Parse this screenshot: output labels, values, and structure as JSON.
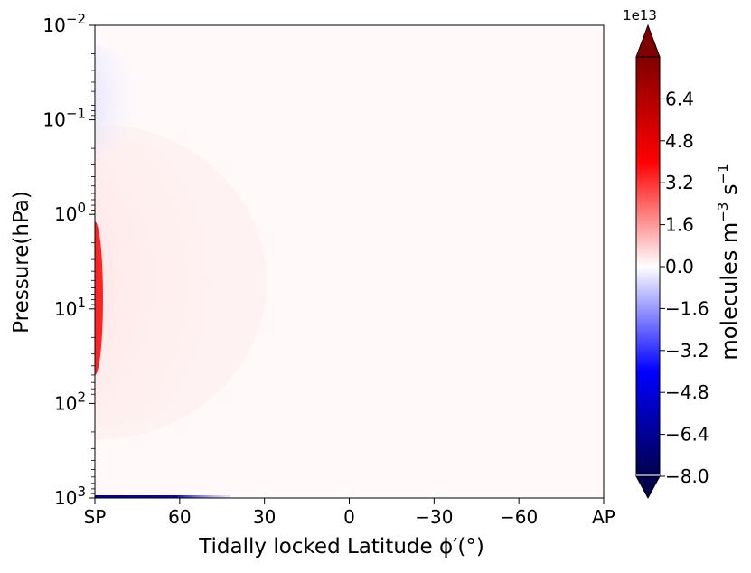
{
  "chart_data": {
    "type": "heatmap",
    "title": "",
    "xlabel": "Tidally locked Latitude ϕ′(°)",
    "ylabel": "Pressure(hPa)",
    "x_ticks": [
      "SP",
      "60",
      "30",
      "0",
      "−30",
      "−60",
      "AP"
    ],
    "x_values": [
      90,
      60,
      30,
      0,
      -30,
      -60,
      -90
    ],
    "xlim": [
      90,
      -90
    ],
    "y_scale": "log",
    "ylim": [
      1000,
      0.01
    ],
    "y_ticks": [
      {
        "base": "10",
        "exp": "−2",
        "value": 0.01
      },
      {
        "base": "10",
        "exp": "−1",
        "value": 0.1
      },
      {
        "base": "10",
        "exp": "0",
        "value": 1
      },
      {
        "base": "10",
        "exp": "1",
        "value": 10
      },
      {
        "base": "10",
        "exp": "2",
        "value": 100
      },
      {
        "base": "10",
        "exp": "3",
        "value": 1000
      }
    ],
    "colorbar": {
      "label_text": "molecules m",
      "label_exp1": "−3",
      "label_mid": " s",
      "label_exp2": "−1",
      "scale_note": "1e13",
      "range": [
        -8.0,
        8.0
      ],
      "extend": "both",
      "cmap": "seismic",
      "ticks": [
        "6.4",
        "4.8",
        "3.2",
        "1.6",
        "0.0",
        "−1.6",
        "−3.2",
        "−4.8",
        "−6.4",
        "−8.0"
      ],
      "tick_values": [
        6.4,
        4.8,
        3.2,
        1.6,
        0.0,
        -1.6,
        -3.2,
        -4.8,
        -6.4,
        -8.0
      ]
    },
    "features": [
      {
        "sign": "positive",
        "lat_range": [
          90,
          30
        ],
        "p_range": [
          0.2,
          200
        ],
        "peak_lat": 90,
        "peak_p": 10,
        "peak_value": 4.5
      },
      {
        "sign": "negative",
        "lat_range": [
          90,
          70
        ],
        "p_range": [
          0.03,
          0.15
        ],
        "peak_lat": 90,
        "peak_p": 0.08,
        "peak_value": -0.6
      },
      {
        "sign": "negative",
        "lat_range": [
          90,
          75
        ],
        "p_range": [
          300,
          1000
        ],
        "peak_lat": 90,
        "peak_p": 800,
        "peak_value": -0.5
      },
      {
        "sign": "negative",
        "lat_range": [
          90,
          45
        ],
        "p_range": [
          950,
          1000
        ],
        "peak_lat": 80,
        "peak_p": 1000,
        "peak_value": -7.0
      }
    ],
    "grid": false,
    "legend": "none"
  }
}
